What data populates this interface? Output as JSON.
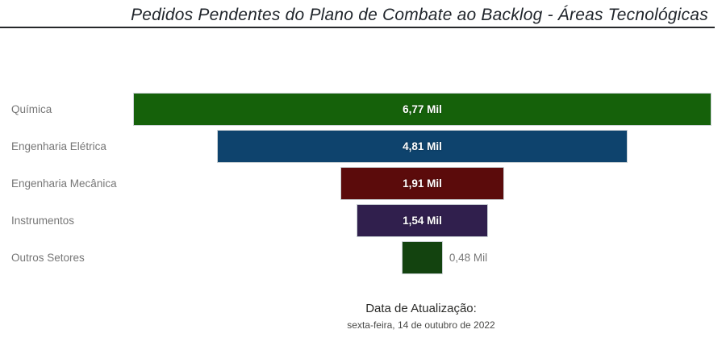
{
  "title": "Pedidos Pendentes do Plano de Combate ao Backlog - Áreas Tecnológicas",
  "footer": {
    "label": "Data de Atualização:",
    "date": "sexta-feira, 14 de outubro de 2022"
  },
  "chart_data": {
    "type": "funnel",
    "title": "Pedidos Pendentes do Plano de Combate ao Backlog - Áreas Tecnológicas",
    "unit": "Mil",
    "categories": [
      "Química",
      "Engenharia Elétrica",
      "Engenharia Mecânica",
      "Instrumentos",
      "Outros Setores"
    ],
    "values": [
      6.77,
      4.81,
      1.91,
      1.54,
      0.48
    ],
    "value_labels": [
      "6,77 Mil",
      "4,81 Mil",
      "1,91 Mil",
      "1,54 Mil",
      "0,48 Mil"
    ],
    "bar_colors": [
      "#15610A",
      "#0E436D",
      "#5B0B0B",
      "#301F4D",
      "#13430F"
    ],
    "category_label_color": "#777777",
    "value_label_color_inside": "#ffffff",
    "value_label_color_outside": "#777777",
    "orientation": "horizontal-centered",
    "legend": "none",
    "grid": false
  }
}
